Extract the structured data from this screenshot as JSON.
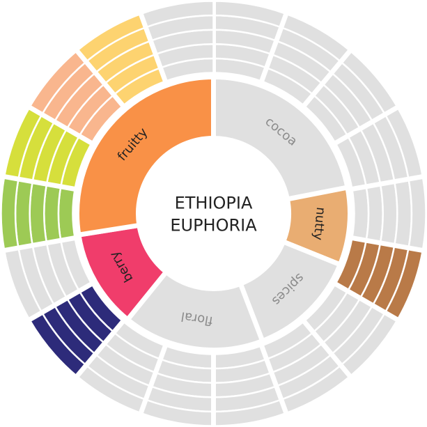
{
  "chart_data": {
    "type": "sunburst",
    "title": [
      "ETHIOPIA",
      "EUPHORIA"
    ],
    "inner": {
      "categories": [
        "cocoa",
        "nutty",
        "spices",
        "floral",
        "berry",
        "fruitty"
      ],
      "values": [
        79,
        33,
        47,
        60,
        42,
        99
      ],
      "colors": [
        "#e0e0e0",
        "#e9ad72",
        "#e0e0e0",
        "#e0e0e0",
        "#f03d6b",
        "#f99147"
      ],
      "label_colors": [
        "#8a8a8a",
        "#222222",
        "#8a8a8a",
        "#8a8a8a",
        "#222222",
        "#222222"
      ]
    },
    "outer": {
      "values": [
        20,
        20,
        20,
        20,
        20,
        20,
        20,
        20,
        20,
        20,
        20,
        20,
        20,
        20,
        20,
        20,
        20,
        20
      ],
      "colors": [
        "#e0e0e0",
        "#e0e0e0",
        "#e0e0e0",
        "#e0e0e0",
        "#e0e0e0",
        "#b97a48",
        "#e0e0e0",
        "#e0e0e0",
        "#e0e0e0",
        "#e0e0e0",
        "#e0e0e0",
        "#2d2b7a",
        "#e0e0e0",
        "#9dca55",
        "#d6df3c",
        "#f9b68e",
        "#fdd370",
        "#e0e0e0"
      ]
    }
  }
}
